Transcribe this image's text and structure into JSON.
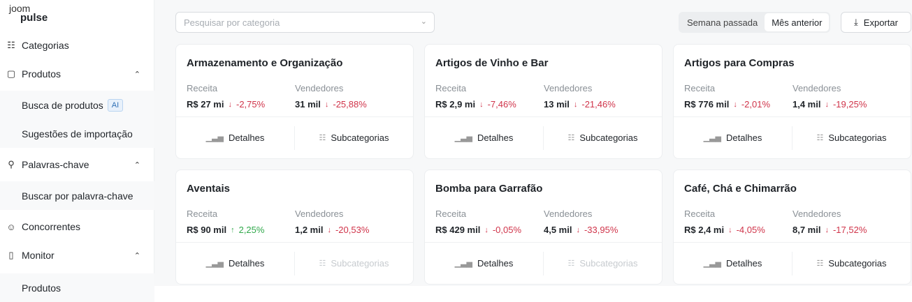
{
  "logo": {
    "line1": "joom",
    "line2": "pulse"
  },
  "sidebar": {
    "items": [
      {
        "label": "Categorias",
        "icon": "sitemap-icon"
      },
      {
        "label": "Produtos",
        "icon": "bag-icon",
        "expanded": true,
        "children": [
          {
            "label": "Busca de produtos",
            "badge": "AI"
          },
          {
            "label": "Sugestões de importação"
          }
        ]
      },
      {
        "label": "Palavras-chave",
        "icon": "search-icon",
        "expanded": true,
        "children": [
          {
            "label": "Buscar por palavra-chave"
          }
        ]
      },
      {
        "label": "Concorrentes",
        "icon": "user-icon"
      },
      {
        "label": "Monitor",
        "icon": "bookmark-icon",
        "expanded": true,
        "children": [
          {
            "label": "Produtos"
          }
        ]
      }
    ]
  },
  "toolbar": {
    "search_placeholder": "Pesquisar por categoria",
    "periods": [
      "Semana passada",
      "Mês anterior"
    ],
    "active_period": "Mês anterior",
    "export_label": "Exportar"
  },
  "labels": {
    "revenue": "Receita",
    "sellers": "Vendedores",
    "details": "Detalhes",
    "subcategories": "Subcategorias"
  },
  "colors": {
    "down": "#d0344a",
    "up": "#2fa84a"
  },
  "cards": [
    {
      "title": "Armazenamento e Organização",
      "revenue": "R$ 27 mi",
      "revenue_change": "-2,75%",
      "sellers": "31 mil",
      "sellers_change": "-25,88%",
      "subcategories_enabled": true
    },
    {
      "title": "Artigos de Vinho e Bar",
      "revenue": "R$ 2,9 mi",
      "revenue_change": "-7,46%",
      "sellers": "13 mil",
      "sellers_change": "-21,46%",
      "subcategories_enabled": true
    },
    {
      "title": "Artigos para Compras",
      "revenue": "R$ 776 mil",
      "revenue_change": "-2,01%",
      "sellers": "1,4 mil",
      "sellers_change": "-19,25%",
      "subcategories_enabled": true
    },
    {
      "title": "Aventais",
      "revenue": "R$ 90 mil",
      "revenue_change": "2,25%",
      "sellers": "1,2 mil",
      "sellers_change": "-20,53%",
      "subcategories_enabled": false
    },
    {
      "title": "Bomba para Garrafão",
      "revenue": "R$ 429 mil",
      "revenue_change": "-0,05%",
      "sellers": "4,5 mil",
      "sellers_change": "-33,95%",
      "subcategories_enabled": false
    },
    {
      "title": "Café, Chá e Chimarrão",
      "revenue": "R$ 2,4 mi",
      "revenue_change": "-4,05%",
      "sellers": "8,7 mil",
      "sellers_change": "-17,52%",
      "subcategories_enabled": true
    }
  ]
}
